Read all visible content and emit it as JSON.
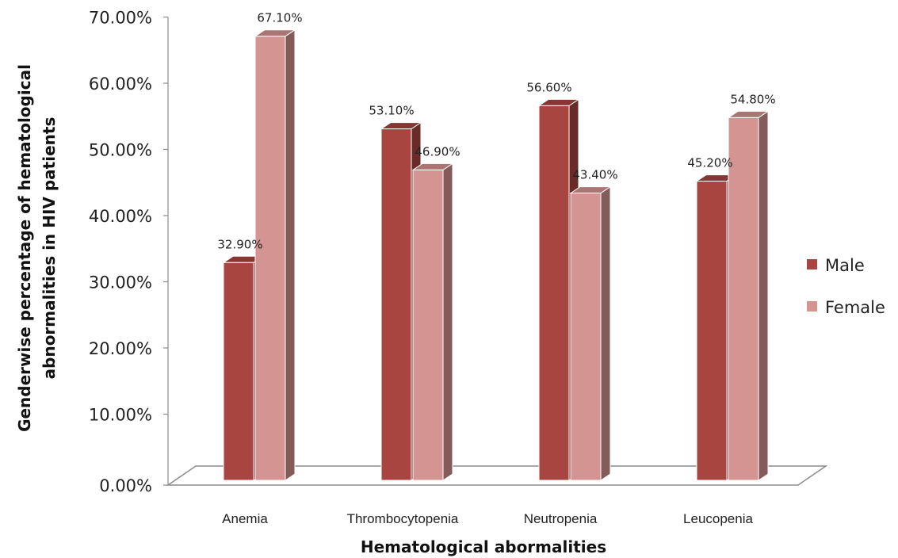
{
  "chart_data": {
    "type": "bar",
    "style": "3d-clustered-column",
    "categories": [
      "Anemia",
      "Thrombocytopenia",
      "Neutropenia",
      "Leucopenia"
    ],
    "series": [
      {
        "name": "Male",
        "values": [
          32.9,
          53.1,
          56.6,
          45.2
        ],
        "labels": [
          "32.90%",
          "53.10%",
          "56.60%",
          "45.20%"
        ],
        "color": "#A84540"
      },
      {
        "name": "Female",
        "values": [
          67.1,
          46.9,
          43.4,
          54.8
        ],
        "labels": [
          "67.10%",
          "46.90%",
          "43.40%",
          "54.80%"
        ],
        "color": "#D49491"
      }
    ],
    "title": "",
    "xlabel": "Hematological abormalities",
    "ylabel": "Genderwise percentage of hematological abnormalities in HIV patients",
    "ylabel_lines": [
      "Genderwise percentage of hematological",
      "abnormalities in HIV patients"
    ],
    "ylim": [
      0,
      70
    ],
    "yticks": [
      "0.00%",
      "10.00%",
      "20.00%",
      "30.00%",
      "40.00%",
      "50.00%",
      "60.00%",
      "70.00%"
    ],
    "grid": false,
    "legend_position": "right"
  }
}
